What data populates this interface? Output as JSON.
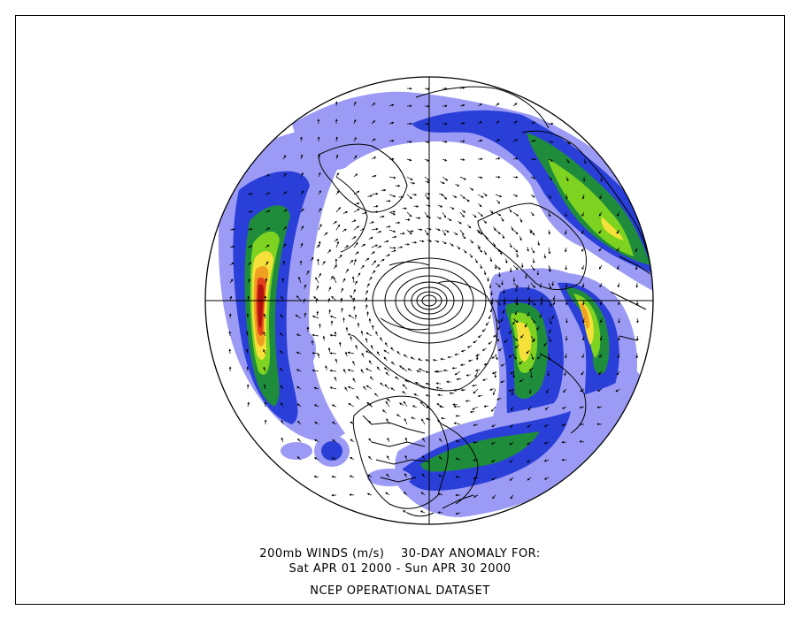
{
  "caption": {
    "line1": "200mb WINDS (m/s)    30-DAY ANOMALY FOR:",
    "line2": "Sat APR 01 2000 - Sun APR 30 2000",
    "line3": "NCEP OPERATIONAL DATASET"
  },
  "map": {
    "projection": "polar-stereographic",
    "hemisphere": "northern",
    "variable": "200mb wind anomaly",
    "shading_colors": [
      "#9b9bf5",
      "#2a3fd8",
      "#1f8c3c",
      "#7ed321",
      "#f5e13a",
      "#f0a020",
      "#e0401a",
      "#b01010"
    ],
    "outline_color": "#000000"
  }
}
